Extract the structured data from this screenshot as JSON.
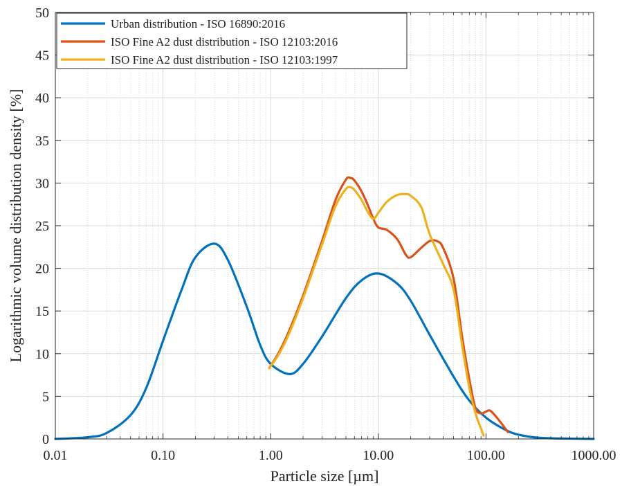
{
  "chart_data": {
    "type": "line",
    "xlabel": "Particle size [µm]",
    "ylabel": "Logarithmic volume distribution density [%]",
    "x_scale": "log",
    "xlim": [
      0.01,
      1000
    ],
    "ylim": [
      0,
      50
    ],
    "x_ticks": [
      "0.01",
      "0.10",
      "1.00",
      "10.00",
      "100.00",
      "1000.00"
    ],
    "y_ticks": [
      "0",
      "5",
      "10",
      "15",
      "20",
      "25",
      "30",
      "35",
      "40",
      "45",
      "50"
    ],
    "grid": true,
    "legend_position": "top-left",
    "series": [
      {
        "name": "Urban distribution - ISO 16890:2016",
        "color": "#0072BD",
        "x": [
          0.01,
          0.02,
          0.03,
          0.05,
          0.07,
          0.1,
          0.15,
          0.2,
          0.3,
          0.4,
          0.6,
          0.8,
          1.0,
          1.5,
          2.0,
          3.0,
          5.0,
          7.0,
          10.0,
          15.0,
          20.0,
          30.0,
          50.0,
          70.0,
          100.0,
          150.0,
          200.0,
          300.0,
          500.0,
          1000.0
        ],
        "y": [
          0.0,
          0.2,
          0.7,
          2.8,
          6.0,
          11.5,
          17.6,
          21.3,
          22.9,
          21.0,
          15.5,
          11.0,
          8.8,
          7.6,
          8.8,
          12.0,
          16.5,
          18.6,
          19.4,
          18.2,
          16.2,
          12.2,
          7.3,
          4.5,
          2.5,
          1.1,
          0.5,
          0.15,
          0.05,
          0.0
        ]
      },
      {
        "name": "ISO Fine A2 dust distribution - ISO 12103:2016",
        "color": "#D95319",
        "x": [
          0.97,
          1.2,
          1.5,
          2.0,
          3.0,
          4.0,
          5.0,
          5.5,
          6.0,
          7.0,
          8.0,
          9.0,
          10.0,
          12.0,
          15.0,
          18.0,
          20.0,
          25.0,
          30.0,
          35.0,
          40.0,
          50.0,
          60.0,
          70.0,
          80.0,
          90.0,
          100.0,
          110.0,
          130.0,
          160.0
        ],
        "y": [
          8.3,
          10.2,
          12.8,
          16.8,
          23.2,
          28.0,
          30.4,
          30.6,
          30.3,
          29.0,
          27.4,
          25.8,
          24.8,
          24.5,
          23.4,
          21.6,
          21.3,
          22.4,
          23.2,
          23.2,
          22.4,
          18.8,
          12.0,
          7.0,
          3.6,
          3.0,
          3.2,
          3.3,
          2.3,
          0.8
        ]
      },
      {
        "name": "ISO Fine A2 dust distribution - ISO 12103:1997",
        "color": "#EDB120",
        "x": [
          0.97,
          1.2,
          1.5,
          2.0,
          3.0,
          4.0,
          5.0,
          5.5,
          6.0,
          7.0,
          8.0,
          9.0,
          10.0,
          12.0,
          15.0,
          18.0,
          20.0,
          25.0,
          30.0,
          40.0,
          50.0,
          60.0,
          70.0,
          80.0,
          90.0,
          95.0
        ],
        "y": [
          8.3,
          10.0,
          12.5,
          16.5,
          22.8,
          27.3,
          29.3,
          29.5,
          29.2,
          28.0,
          26.6,
          25.8,
          26.5,
          27.8,
          28.6,
          28.7,
          28.5,
          27.2,
          24.0,
          20.5,
          17.5,
          11.0,
          6.0,
          3.0,
          1.2,
          0.4
        ]
      }
    ]
  }
}
